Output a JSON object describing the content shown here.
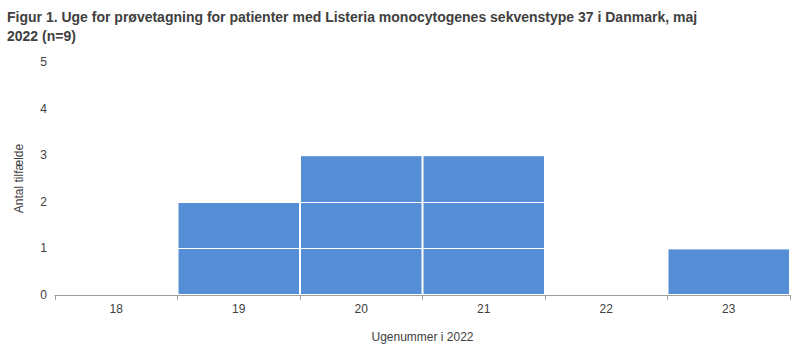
{
  "chart_data": {
    "type": "bar",
    "title": "Figur 1. Uge for prøvetagning for patienter med Listeria monocytogenes sekvenstype 37 i Danmark, maj 2022 (n=9)",
    "x_label": "Ugenummer i 2022",
    "y_label": "Antal tilfælde",
    "categories": [
      "18",
      "19",
      "20",
      "21",
      "22",
      "23"
    ],
    "values": [
      0,
      2,
      3,
      3,
      0,
      1
    ],
    "color": "#558ed5",
    "ylim": [
      0,
      5
    ],
    "yticks": [
      0,
      1,
      2,
      3,
      4,
      5
    ],
    "grid": true
  }
}
